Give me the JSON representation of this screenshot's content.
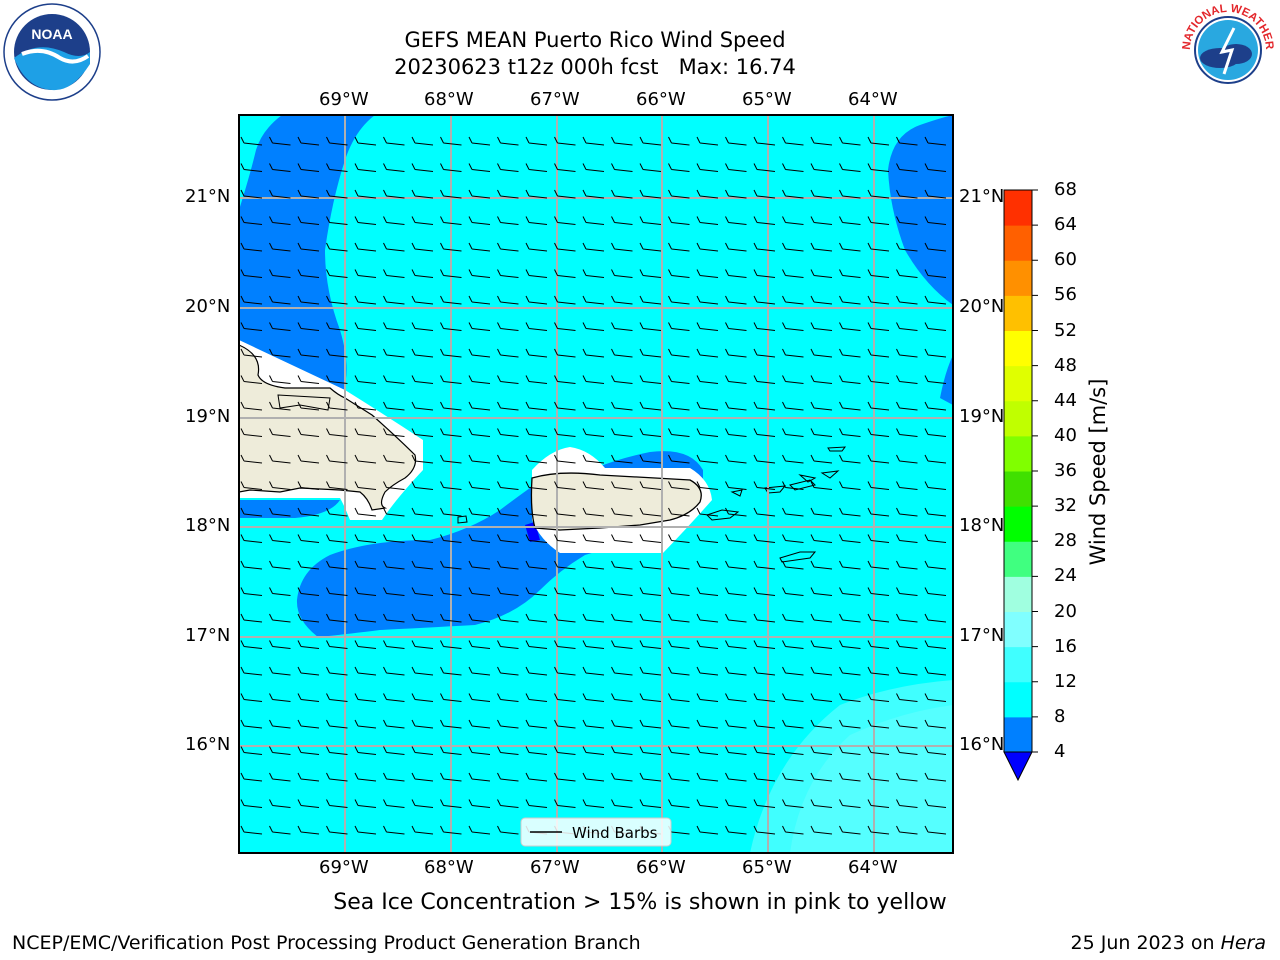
{
  "header": {
    "title_line1": "GEFS MEAN Puerto Rico Wind Speed",
    "title_line2": "20230623 t12z 000h fcst   Max: 16.74"
  },
  "logos": {
    "left": "NOAA",
    "right": "NATIONAL WEATHER SERVICE"
  },
  "map": {
    "lon_labels": [
      "69°W",
      "68°W",
      "67°W",
      "66°W",
      "65°W",
      "64°W"
    ],
    "lat_labels": [
      "21°N",
      "20°N",
      "19°N",
      "18°N",
      "17°N",
      "16°N"
    ],
    "legend_label": "Wind Barbs",
    "colors": {
      "land": "#eeecda",
      "wind_4_8": "#0080ff",
      "wind_8_12": "#00ffff",
      "wind_12_16": "#40ffff",
      "wind_below_4": "#0000ff",
      "grid": "#b0b0b0"
    }
  },
  "colorbar": {
    "label": "Wind Speed [m/s]",
    "ticks": [
      "4",
      "8",
      "12",
      "16",
      "20",
      "24",
      "28",
      "32",
      "36",
      "40",
      "44",
      "48",
      "52",
      "56",
      "60",
      "64",
      "68"
    ],
    "colors": [
      "#0080ff",
      "#00ffff",
      "#40ffff",
      "#80ffff",
      "#a0ffe0",
      "#40ff80",
      "#00ff00",
      "#40e000",
      "#80ff00",
      "#c0ff00",
      "#e0ff00",
      "#ffff00",
      "#ffc000",
      "#ff9000",
      "#ff6000",
      "#ff3000",
      "#ff0000"
    ],
    "extend_color": "#0000ff"
  },
  "note": "Sea Ice Concentration > 15% is shown in pink to yellow",
  "footer": {
    "left": "NCEP/EMC/Verification Post Processing Product Generation Branch",
    "right_prefix": "25 Jun 2023 on ",
    "right_host": "Hera"
  }
}
